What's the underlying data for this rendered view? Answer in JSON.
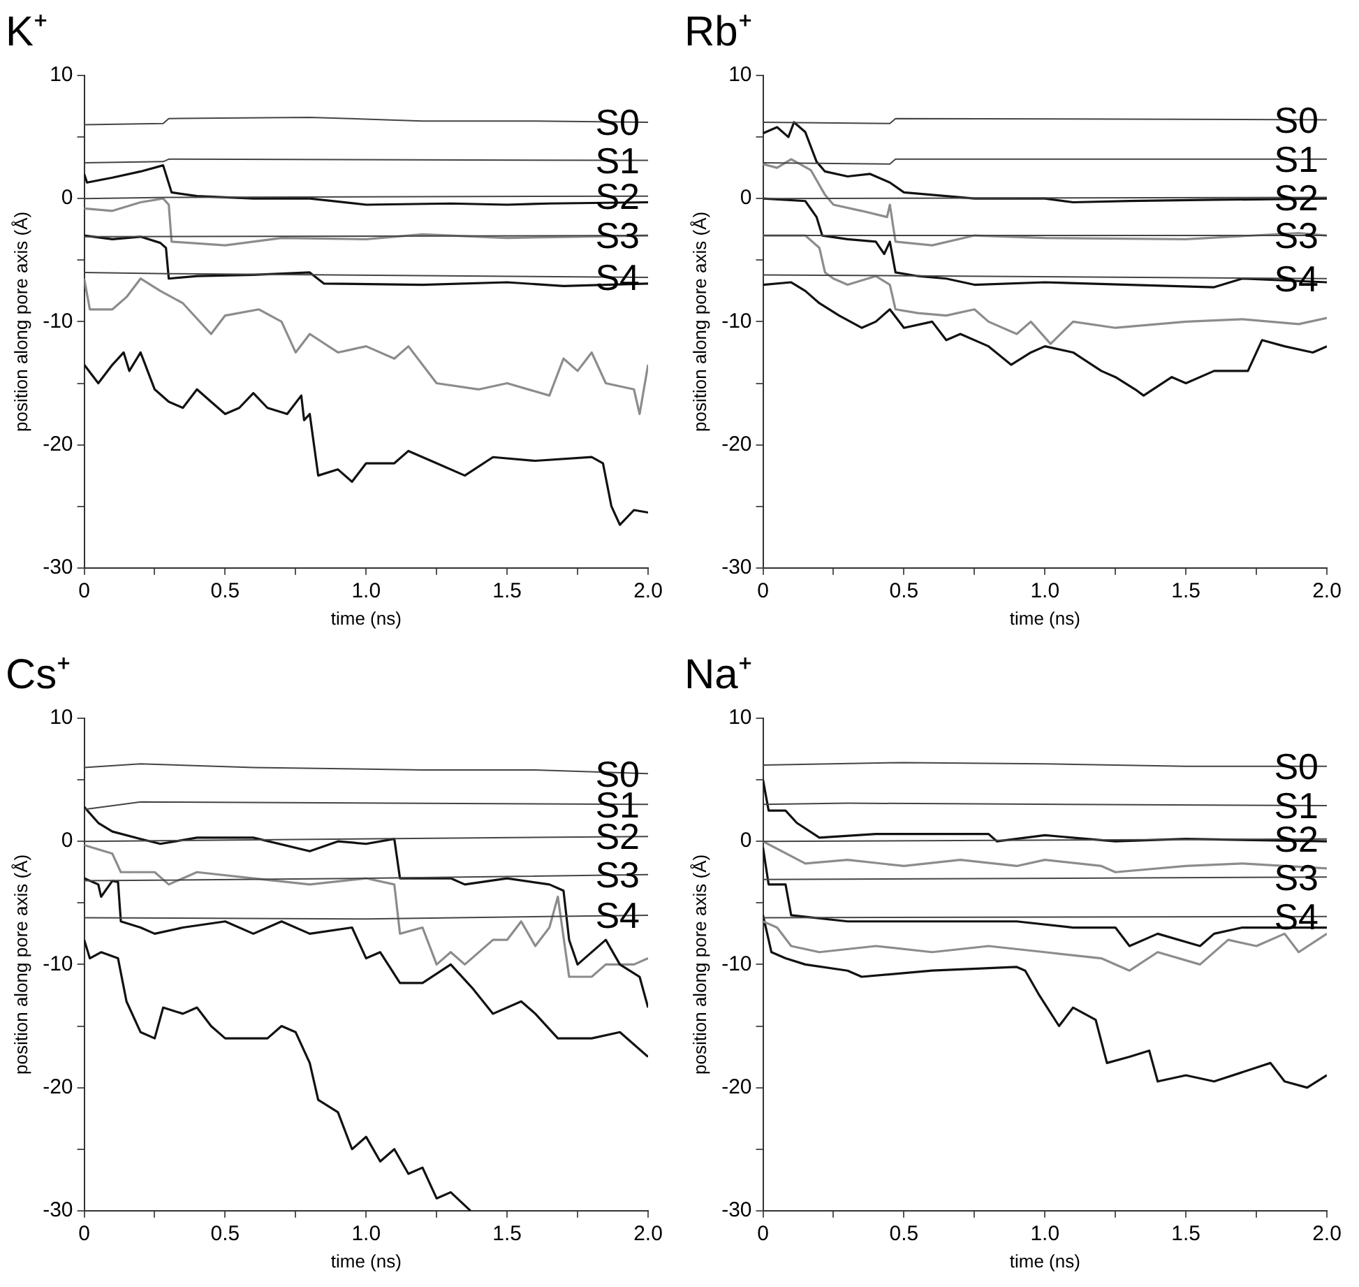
{
  "chart_data": [
    {
      "type": "line",
      "title": "K⁺",
      "xlabel": "time (ns)",
      "ylabel": "position along pore axis (Å)",
      "xlim": [
        0,
        2
      ],
      "ylim": [
        -30,
        10
      ],
      "xticks": [
        0,
        {
          "value": 0.25,
          "label": null
        },
        0.5,
        {
          "value": 0.75,
          "label": null
        },
        {
          "value": 1,
          "label": "1.0"
        },
        {
          "value": 1.25,
          "label": null
        },
        1.5,
        {
          "value": 1.75,
          "label": null
        },
        {
          "value": 2,
          "label": "2.0"
        }
      ],
      "yticks": [
        -30,
        {
          "value": -25,
          "label": null
        },
        -20,
        {
          "value": -15,
          "label": null
        },
        -10,
        {
          "value": -5,
          "label": null
        },
        0,
        {
          "value": 5,
          "label": null
        },
        10
      ],
      "grid": false,
      "legend": false,
      "marker": "none",
      "line_style": "solid",
      "series": [
        {
          "name": "S0",
          "color": "#444444",
          "x": [
            0,
            0.28,
            0.3,
            0.8,
            1.2,
            1.6,
            2
          ],
          "values": [
            6.0,
            6.1,
            6.5,
            6.6,
            6.3,
            6.3,
            6.2
          ]
        },
        {
          "name": "S1",
          "color": "#444444",
          "x": [
            0,
            0.28,
            0.3,
            2
          ],
          "values": [
            2.9,
            3.0,
            3.2,
            3.1
          ]
        },
        {
          "name": "S2",
          "color": "#444444",
          "x": [
            0,
            0.3,
            2
          ],
          "values": [
            0,
            0.1,
            0.2
          ]
        },
        {
          "name": "S3",
          "color": "#444444",
          "x": [
            0,
            2
          ],
          "values": [
            -3.1,
            -3.0
          ]
        },
        {
          "name": "S4",
          "color": "#444444",
          "x": [
            0,
            0.3,
            2
          ],
          "values": [
            -6.0,
            -6.1,
            -6.4
          ]
        },
        {
          "color": "#111111",
          "x": [
            0,
            0.01,
            0.1,
            0.2,
            0.28,
            0.31,
            0.4,
            0.6,
            0.8,
            1.0,
            1.3,
            1.5,
            1.65,
            2.0
          ],
          "values": [
            2,
            1.3,
            1.7,
            2.2,
            2.7,
            0.5,
            0.2,
            0,
            0,
            -0.5,
            -0.4,
            -0.5,
            -0.4,
            -0.3
          ]
        },
        {
          "color": "#8c8c8c",
          "x": [
            0,
            0.1,
            0.2,
            0.28,
            0.3,
            0.31,
            0.5,
            0.7,
            1.0,
            1.2,
            1.5,
            2.0
          ],
          "values": [
            -0.8,
            -1.0,
            -0.3,
            0,
            -0.5,
            -3.5,
            -3.8,
            -3.2,
            -3.3,
            -2.9,
            -3.2,
            -3.0
          ]
        },
        {
          "color": "#111111",
          "x": [
            0,
            0.1,
            0.2,
            0.27,
            0.29,
            0.3,
            0.4,
            0.6,
            0.8,
            0.85,
            1.2,
            1.5,
            1.7,
            2.0
          ],
          "values": [
            -3,
            -3.3,
            -3.1,
            -3.6,
            -4,
            -6.5,
            -6.3,
            -6.2,
            -6.0,
            -6.9,
            -7.0,
            -6.8,
            -7.1,
            -6.9
          ]
        },
        {
          "color": "#8c8c8c",
          "x": [
            0,
            0.02,
            0.1,
            0.15,
            0.2,
            0.27,
            0.35,
            0.45,
            0.5,
            0.62,
            0.7,
            0.75,
            0.8,
            0.9,
            1.0,
            1.1,
            1.15,
            1.25,
            1.4,
            1.5,
            1.65,
            1.7,
            1.75,
            1.8,
            1.85,
            1.95,
            1.97,
            2.0
          ],
          "values": [
            -6.5,
            -9,
            -9,
            -8,
            -6.5,
            -7.5,
            -8.5,
            -11,
            -9.5,
            -9,
            -10,
            -12.5,
            -11,
            -12.5,
            -12,
            -13,
            -12,
            -15,
            -15.5,
            -15,
            -16,
            -13,
            -14,
            -12.5,
            -15,
            -15.5,
            -17.5,
            -13.5
          ]
        },
        {
          "color": "#111111",
          "x": [
            0,
            0.05,
            0.1,
            0.14,
            0.16,
            0.2,
            0.25,
            0.3,
            0.35,
            0.4,
            0.45,
            0.5,
            0.55,
            0.6,
            0.65,
            0.72,
            0.77,
            0.78,
            0.8,
            0.83,
            0.9,
            0.95,
            1.0,
            1.1,
            1.15,
            1.25,
            1.35,
            1.45,
            1.6,
            1.8,
            1.84,
            1.87,
            1.9,
            1.95,
            2.0
          ],
          "values": [
            -13.5,
            -15,
            -13.5,
            -12.5,
            -14,
            -12.5,
            -15.5,
            -16.5,
            -17,
            -15.5,
            -16.5,
            -17.5,
            -17,
            -15.8,
            -17,
            -17.5,
            -16,
            -18,
            -17.5,
            -22.5,
            -22,
            -23,
            -21.5,
            -21.5,
            -20.5,
            -21.5,
            -22.5,
            -21,
            -21.3,
            -21,
            -21.5,
            -25,
            -26.5,
            -25.3,
            -25.5
          ]
        }
      ]
    },
    {
      "type": "line",
      "title": "Rb⁺",
      "xlabel": "time (ns)",
      "ylabel": "position along pore axis (Å)",
      "xlim": [
        0,
        2
      ],
      "ylim": [
        -30,
        10
      ],
      "xticks": [
        0,
        {
          "value": 0.25,
          "label": null
        },
        0.5,
        {
          "value": 0.75,
          "label": null
        },
        {
          "value": 1,
          "label": "1.0"
        },
        {
          "value": 1.25,
          "label": null
        },
        1.5,
        {
          "value": 1.75,
          "label": null
        },
        {
          "value": 2,
          "label": "2.0"
        }
      ],
      "yticks": [
        -30,
        {
          "value": -25,
          "label": null
        },
        -20,
        {
          "value": -15,
          "label": null
        },
        -10,
        {
          "value": -5,
          "label": null
        },
        0,
        {
          "value": 5,
          "label": null
        },
        10
      ],
      "grid": false,
      "legend": false,
      "marker": "none",
      "line_style": "solid",
      "series": [
        {
          "name": "S0",
          "color": "#444444",
          "x": [
            0,
            0.45,
            0.47,
            2
          ],
          "values": [
            6.2,
            6.1,
            6.5,
            6.4
          ]
        },
        {
          "name": "S1",
          "color": "#444444",
          "x": [
            0,
            0.45,
            0.47,
            2
          ],
          "values": [
            2.9,
            2.8,
            3.2,
            3.2
          ]
        },
        {
          "name": "S2",
          "color": "#444444",
          "x": [
            0,
            2
          ],
          "values": [
            0,
            0.1
          ]
        },
        {
          "name": "S3",
          "color": "#444444",
          "x": [
            0,
            2
          ],
          "values": [
            -3,
            -3
          ]
        },
        {
          "name": "S4",
          "color": "#444444",
          "x": [
            0,
            2
          ],
          "values": [
            -6.2,
            -6.5
          ]
        },
        {
          "color": "#111111",
          "x": [
            0,
            0.05,
            0.09,
            0.11,
            0.15,
            0.19,
            0.22,
            0.3,
            0.38,
            0.45,
            0.5,
            0.6,
            0.75,
            1.0,
            1.1,
            1.3,
            1.6,
            2.0
          ],
          "values": [
            5.3,
            5.8,
            5,
            6.2,
            5.4,
            3,
            2.2,
            1.8,
            2,
            1.3,
            0.5,
            0.3,
            0,
            0,
            -0.3,
            -0.2,
            -0.1,
            0
          ]
        },
        {
          "color": "#8c8c8c",
          "x": [
            0,
            0.05,
            0.1,
            0.17,
            0.22,
            0.25,
            0.35,
            0.44,
            0.45,
            0.47,
            0.6,
            0.75,
            1.0,
            1.5,
            1.9,
            2.0
          ],
          "values": [
            2.8,
            2.5,
            3.2,
            2.3,
            0.3,
            -0.5,
            -1,
            -1.5,
            -0.5,
            -3.5,
            -3.8,
            -3,
            -3.2,
            -3.3,
            -2.8,
            -3
          ]
        },
        {
          "color": "#111111",
          "x": [
            0,
            0.15,
            0.19,
            0.21,
            0.3,
            0.4,
            0.43,
            0.45,
            0.47,
            0.55,
            0.65,
            0.75,
            1.0,
            1.3,
            1.6,
            1.7,
            2.0
          ],
          "values": [
            0,
            -0.2,
            -1.5,
            -3,
            -3.3,
            -3.5,
            -4.5,
            -3.5,
            -6,
            -6.3,
            -6.5,
            -7,
            -6.8,
            -7,
            -7.2,
            -6.5,
            -6.8
          ]
        },
        {
          "color": "#8c8c8c",
          "x": [
            0,
            0.15,
            0.2,
            0.22,
            0.25,
            0.3,
            0.4,
            0.45,
            0.47,
            0.55,
            0.65,
            0.75,
            0.8,
            0.9,
            0.95,
            1.02,
            1.1,
            1.25,
            1.5,
            1.7,
            1.9,
            2.0
          ],
          "values": [
            -3,
            -3,
            -4,
            -6,
            -6.5,
            -7,
            -6.3,
            -7,
            -9,
            -9.3,
            -9.5,
            -9,
            -10,
            -11,
            -10,
            -11.8,
            -10,
            -10.5,
            -10,
            -9.8,
            -10.2,
            -9.7
          ]
        },
        {
          "color": "#111111",
          "x": [
            0,
            0.1,
            0.15,
            0.2,
            0.27,
            0.35,
            0.4,
            0.45,
            0.5,
            0.6,
            0.65,
            0.7,
            0.8,
            0.88,
            0.95,
            1.0,
            1.1,
            1.2,
            1.25,
            1.32,
            1.35,
            1.45,
            1.5,
            1.6,
            1.72,
            1.77,
            1.85,
            1.95,
            2.0
          ],
          "values": [
            -7,
            -6.8,
            -7.5,
            -8.5,
            -9.5,
            -10.5,
            -10,
            -9,
            -10.5,
            -10,
            -11.5,
            -11,
            -12,
            -13.5,
            -12.5,
            -12,
            -12.5,
            -14,
            -14.5,
            -15.5,
            -16,
            -14.5,
            -15,
            -14,
            -14,
            -11.5,
            -12,
            -12.5,
            -12
          ]
        }
      ]
    },
    {
      "type": "line",
      "title": "Cs⁺",
      "xlabel": "time (ns)",
      "ylabel": "position along pore axis (Å)",
      "xlim": [
        0,
        2
      ],
      "ylim": [
        -30,
        10
      ],
      "xticks": [
        0,
        {
          "value": 0.25,
          "label": null
        },
        0.5,
        {
          "value": 0.75,
          "label": null
        },
        {
          "value": 1,
          "label": "1.0"
        },
        {
          "value": 1.25,
          "label": null
        },
        1.5,
        {
          "value": 1.75,
          "label": null
        },
        {
          "value": 2,
          "label": "2.0"
        }
      ],
      "yticks": [
        -30,
        {
          "value": -25,
          "label": null
        },
        -20,
        {
          "value": -15,
          "label": null
        },
        -10,
        {
          "value": -5,
          "label": null
        },
        0,
        {
          "value": 5,
          "label": null
        },
        10
      ],
      "grid": false,
      "legend": false,
      "marker": "none",
      "line_style": "solid",
      "series": [
        {
          "name": "S0",
          "color": "#444444",
          "x": [
            0,
            0.2,
            0.6,
            1.2,
            1.6,
            2
          ],
          "values": [
            6,
            6.3,
            6,
            5.8,
            5.8,
            5.5
          ]
        },
        {
          "name": "S1",
          "color": "#444444",
          "x": [
            0,
            0.2,
            2
          ],
          "values": [
            2.6,
            3.2,
            3.0
          ]
        },
        {
          "name": "S2",
          "color": "#444444",
          "x": [
            0,
            2
          ],
          "values": [
            0,
            0.4
          ]
        },
        {
          "name": "S3",
          "color": "#444444",
          "x": [
            0,
            1,
            2
          ],
          "values": [
            -3.2,
            -3,
            -2.7
          ]
        },
        {
          "name": "S4",
          "color": "#444444",
          "x": [
            0,
            1,
            2
          ],
          "values": [
            -6.2,
            -6.3,
            -6.0
          ]
        },
        {
          "color": "#111111",
          "x": [
            0,
            0.05,
            0.1,
            0.2,
            0.27,
            0.4,
            0.6,
            0.8,
            0.9,
            1.0,
            1.1,
            1.12,
            1.3,
            1.35,
            1.5,
            1.65,
            1.7,
            1.72,
            1.75,
            1.85,
            1.9,
            1.97,
            2.0
          ],
          "values": [
            2.8,
            1.5,
            0.8,
            0.2,
            -0.2,
            0.3,
            0.3,
            -0.8,
            0,
            -0.2,
            0.2,
            -3,
            -3,
            -3.5,
            -3,
            -3.5,
            -4,
            -8,
            -10,
            -8,
            -10,
            -11,
            -13.5
          ]
        },
        {
          "color": "#8c8c8c",
          "x": [
            0,
            0.1,
            0.13,
            0.25,
            0.3,
            0.4,
            0.6,
            0.8,
            1.0,
            1.1,
            1.12,
            1.2,
            1.25,
            1.3,
            1.35,
            1.45,
            1.5,
            1.55,
            1.6,
            1.65,
            1.68,
            1.72,
            1.8,
            1.85,
            1.95,
            2.0
          ],
          "values": [
            -0.3,
            -1,
            -2.5,
            -2.5,
            -3.5,
            -2.5,
            -3,
            -3.5,
            -3,
            -3.5,
            -7.5,
            -7,
            -10,
            -9,
            -10,
            -8,
            -8,
            -6.5,
            -8.5,
            -7,
            -4.5,
            -11,
            -11,
            -10,
            -10,
            -9.5
          ]
        },
        {
          "color": "#111111",
          "x": [
            0,
            0.05,
            0.06,
            0.1,
            0.12,
            0.13,
            0.2,
            0.25,
            0.35,
            0.5,
            0.6,
            0.7,
            0.8,
            0.95,
            1.0,
            1.05,
            1.12,
            1.2,
            1.3,
            1.38,
            1.45,
            1.55,
            1.6,
            1.68,
            1.8,
            1.9,
            2.0
          ],
          "values": [
            -3,
            -3.5,
            -4.5,
            -3.2,
            -3.3,
            -6.5,
            -7,
            -7.5,
            -7,
            -6.5,
            -7.5,
            -6.5,
            -7.5,
            -7,
            -9.5,
            -9,
            -11.5,
            -11.5,
            -10,
            -12,
            -14,
            -13,
            -14,
            -16,
            -16,
            -15.5,
            -17.5
          ]
        },
        {
          "color": "#111111",
          "x": [
            0,
            0.02,
            0.06,
            0.12,
            0.15,
            0.2,
            0.25,
            0.28,
            0.35,
            0.4,
            0.45,
            0.5,
            0.65,
            0.7,
            0.75,
            0.8,
            0.83,
            0.9,
            0.95,
            1.0,
            1.05,
            1.1,
            1.15,
            1.2,
            1.25,
            1.3,
            1.37
          ],
          "values": [
            -8,
            -9.5,
            -9,
            -9.5,
            -13,
            -15.5,
            -16,
            -13.5,
            -14,
            -13.5,
            -15,
            -16,
            -16,
            -15,
            -15.5,
            -18,
            -21,
            -22,
            -25,
            -24,
            -26,
            -25,
            -27,
            -26.5,
            -29,
            -28.5,
            -30
          ]
        }
      ]
    },
    {
      "type": "line",
      "title": "Na⁺",
      "xlabel": "time (ns)",
      "ylabel": "position along pore axis (Å)",
      "xlim": [
        0,
        2
      ],
      "ylim": [
        -30,
        10
      ],
      "xticks": [
        0,
        {
          "value": 0.25,
          "label": null
        },
        0.5,
        {
          "value": 0.75,
          "label": null
        },
        {
          "value": 1,
          "label": "1.0"
        },
        {
          "value": 1.25,
          "label": null
        },
        1.5,
        {
          "value": 1.75,
          "label": null
        },
        {
          "value": 2,
          "label": "2.0"
        }
      ],
      "yticks": [
        -30,
        {
          "value": -25,
          "label": null
        },
        -20,
        {
          "value": -15,
          "label": null
        },
        -10,
        {
          "value": -5,
          "label": null
        },
        0,
        {
          "value": 5,
          "label": null
        },
        10
      ],
      "grid": false,
      "legend": false,
      "marker": "none",
      "line_style": "solid",
      "series": [
        {
          "name": "S0",
          "color": "#444444",
          "x": [
            0,
            0.5,
            1.0,
            1.5,
            2
          ],
          "values": [
            6.2,
            6.4,
            6.3,
            6.1,
            6.1
          ]
        },
        {
          "name": "S1",
          "color": "#444444",
          "x": [
            0,
            0.3,
            2
          ],
          "values": [
            3,
            3.1,
            2.9
          ]
        },
        {
          "name": "S2",
          "color": "#444444",
          "x": [
            0,
            2
          ],
          "values": [
            0,
            0.2
          ]
        },
        {
          "name": "S3",
          "color": "#444444",
          "x": [
            0,
            2
          ],
          "values": [
            -3.1,
            -2.9
          ]
        },
        {
          "name": "S4",
          "color": "#444444",
          "x": [
            0,
            2
          ],
          "values": [
            -6.2,
            -6.1
          ]
        },
        {
          "color": "#111111",
          "x": [
            0,
            0.02,
            0.08,
            0.12,
            0.2,
            0.4,
            0.6,
            0.8,
            0.83,
            1.0,
            1.25,
            1.5,
            2.0
          ],
          "values": [
            5,
            2.5,
            2.5,
            1.5,
            0.3,
            0.6,
            0.6,
            0.6,
            0,
            0.5,
            0,
            0.2,
            0
          ]
        },
        {
          "color": "#8c8c8c",
          "x": [
            0,
            0.15,
            0.3,
            0.5,
            0.7,
            0.9,
            1.0,
            1.2,
            1.25,
            1.5,
            1.7,
            2.0
          ],
          "values": [
            0,
            -1.8,
            -1.5,
            -2,
            -1.5,
            -2,
            -1.5,
            -2,
            -2.5,
            -2,
            -1.8,
            -2.2
          ]
        },
        {
          "color": "#111111",
          "x": [
            0,
            0.02,
            0.08,
            0.1,
            0.3,
            0.6,
            0.9,
            1.1,
            1.25,
            1.3,
            1.4,
            1.55,
            1.6,
            1.7,
            2.0
          ],
          "values": [
            -0.5,
            -3.5,
            -3.5,
            -6,
            -6.5,
            -6.5,
            -6.5,
            -7,
            -7,
            -8.5,
            -7.5,
            -8.5,
            -7.5,
            -7,
            -7
          ]
        },
        {
          "color": "#8c8c8c",
          "x": [
            0,
            0.05,
            0.1,
            0.2,
            0.4,
            0.6,
            0.8,
            1.0,
            1.2,
            1.3,
            1.4,
            1.55,
            1.65,
            1.75,
            1.85,
            1.9,
            2.0
          ],
          "values": [
            -6.5,
            -7,
            -8.5,
            -9,
            -8.5,
            -9,
            -8.5,
            -9,
            -9.5,
            -10.5,
            -9,
            -10,
            -8,
            -8.5,
            -7.5,
            -9,
            -7.5
          ]
        },
        {
          "color": "#111111",
          "x": [
            0,
            0.03,
            0.08,
            0.15,
            0.3,
            0.35,
            0.6,
            0.9,
            0.93,
            0.98,
            1.05,
            1.1,
            1.18,
            1.22,
            1.3,
            1.37,
            1.4,
            1.5,
            1.6,
            1.8,
            1.85,
            1.93,
            2.0
          ],
          "values": [
            -6,
            -9,
            -9.5,
            -10,
            -10.5,
            -11,
            -10.5,
            -10.2,
            -10.5,
            -12.5,
            -15,
            -13.5,
            -14.5,
            -18,
            -17.5,
            -17,
            -19.5,
            -19,
            -19.5,
            -18,
            -19.5,
            -20,
            -19
          ]
        }
      ]
    }
  ]
}
